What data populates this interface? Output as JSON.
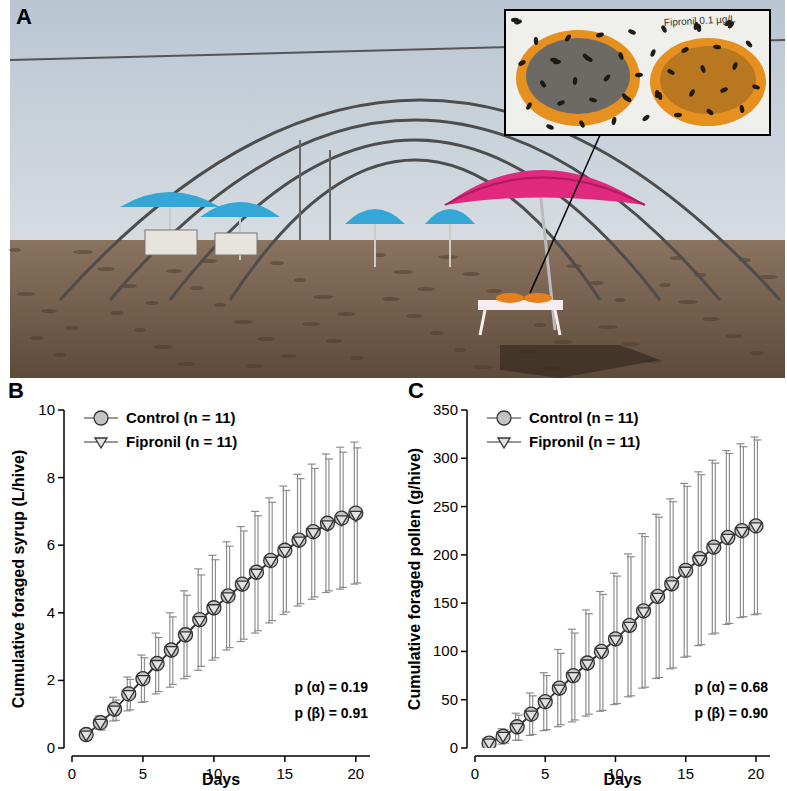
{
  "photo": {
    "label": "A",
    "inset_text": "Fipronil 0.1 µg/L"
  },
  "chart_data": [
    {
      "type": "line",
      "title": "B",
      "x_label": "Days",
      "y_label": "Cumulative foraged syrup (L/hive)",
      "x": [
        1,
        2,
        3,
        4,
        5,
        6,
        7,
        8,
        9,
        10,
        11,
        12,
        13,
        14,
        15,
        16,
        17,
        18,
        19,
        20
      ],
      "series": [
        {
          "name": "Control (n = 11)",
          "color": "#c4c4c4",
          "marker": "circle",
          "values": [
            0.4,
            0.75,
            1.15,
            1.6,
            2.05,
            2.5,
            2.9,
            3.35,
            3.8,
            4.15,
            4.5,
            4.85,
            5.2,
            5.55,
            5.85,
            6.15,
            6.4,
            6.65,
            6.8,
            6.95
          ],
          "errors": [
            0.1,
            0.2,
            0.35,
            0.5,
            0.7,
            0.9,
            1.1,
            1.3,
            1.5,
            1.55,
            1.6,
            1.7,
            1.8,
            1.85,
            1.9,
            1.95,
            2.0,
            2.05,
            2.1,
            2.1
          ]
        },
        {
          "name": "Fipronil (n = 11)",
          "color": "#e2e2e2",
          "marker": "triangle-down",
          "values": [
            0.38,
            0.73,
            1.12,
            1.58,
            2.02,
            2.47,
            2.88,
            3.32,
            3.77,
            4.12,
            4.47,
            4.82,
            5.17,
            5.52,
            5.82,
            6.12,
            6.37,
            6.6,
            6.75,
            6.88
          ],
          "errors": [
            0.1,
            0.2,
            0.3,
            0.45,
            0.65,
            0.8,
            1.0,
            1.2,
            1.35,
            1.45,
            1.5,
            1.6,
            1.7,
            1.75,
            1.8,
            1.85,
            1.9,
            1.95,
            2.0,
            2.0
          ]
        }
      ],
      "xlim": [
        0,
        21
      ],
      "xticks": [
        0,
        5,
        10,
        15,
        20
      ],
      "ylim": [
        0,
        10
      ],
      "yticks": [
        0,
        2,
        4,
        6,
        8,
        10
      ],
      "legend": "upper left",
      "annotations": [
        "p (α) = 0.19",
        "p (β) = 0.91"
      ]
    },
    {
      "type": "line",
      "title": "C",
      "x_label": "Days",
      "y_label": "Cumulative foraged pollen (g/hive)",
      "x": [
        1,
        2,
        3,
        4,
        5,
        6,
        7,
        8,
        9,
        10,
        11,
        12,
        13,
        14,
        15,
        16,
        17,
        18,
        19,
        20
      ],
      "series": [
        {
          "name": "Control (n = 11)",
          "color": "#c4c4c4",
          "marker": "circle",
          "values": [
            5,
            12,
            22,
            35,
            48,
            62,
            75,
            88,
            100,
            113,
            127,
            142,
            157,
            170,
            184,
            196,
            208,
            218,
            225,
            230
          ],
          "errors": [
            3,
            8,
            14,
            22,
            30,
            40,
            48,
            55,
            62,
            68,
            74,
            80,
            85,
            88,
            90,
            90,
            90,
            90,
            90,
            92
          ]
        },
        {
          "name": "Fipronil (n = 11)",
          "color": "#e2e2e2",
          "marker": "triangle-down",
          "values": [
            5,
            12,
            21,
            34,
            47,
            61,
            74,
            87,
            99,
            112,
            126,
            141,
            156,
            169,
            183,
            195,
            207,
            217,
            224,
            229
          ],
          "errors": [
            3,
            7,
            13,
            20,
            28,
            37,
            45,
            52,
            60,
            66,
            72,
            78,
            83,
            86,
            88,
            88,
            88,
            88,
            88,
            90
          ]
        }
      ],
      "xlim": [
        0,
        21
      ],
      "xticks": [
        0,
        5,
        10,
        15,
        20
      ],
      "ylim": [
        0,
        350
      ],
      "yticks": [
        0,
        50,
        100,
        150,
        200,
        250,
        300,
        350
      ],
      "legend": "upper left",
      "annotations": [
        "p (α) = 0.68",
        "p (β) = 0.90"
      ]
    }
  ]
}
